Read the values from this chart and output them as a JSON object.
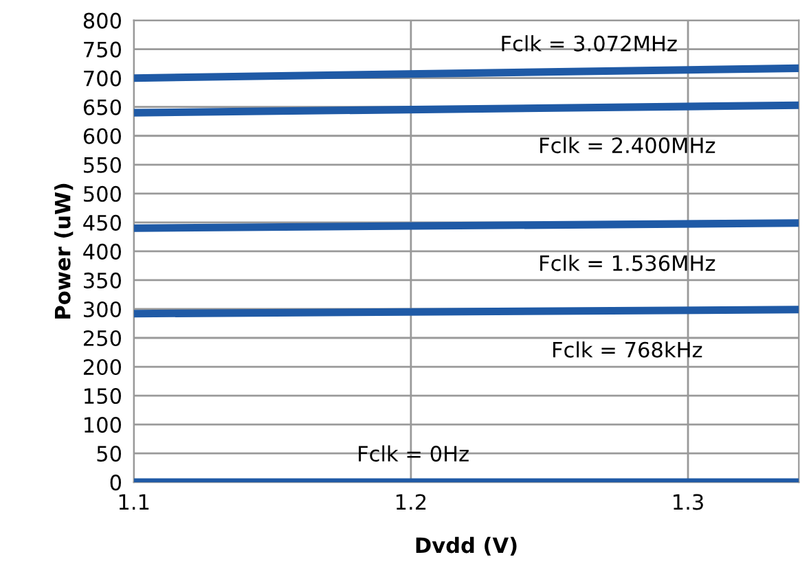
{
  "chart_data": {
    "type": "line",
    "xlabel": "Dvdd (V)",
    "ylabel": "Power (uW)",
    "x": [
      1.1,
      1.34
    ],
    "series": [
      {
        "name": "Fclk = 3.072MHz",
        "color": "#1f5aa6",
        "values": [
          700,
          717
        ]
      },
      {
        "name": "Fclk = 2.400MHz",
        "color": "#1f5aa6",
        "values": [
          640,
          653
        ]
      },
      {
        "name": "Fclk = 1.536MHz",
        "color": "#1f5aa6",
        "values": [
          440,
          449
        ]
      },
      {
        "name": "Fclk = 768kHz",
        "color": "#1f5aa6",
        "values": [
          292,
          299
        ]
      },
      {
        "name": "Fclk = 0Hz",
        "color": "#1f5aa6",
        "values": [
          0,
          0
        ]
      }
    ],
    "xlim": [
      1.1,
      1.34
    ],
    "xticks": [
      1.1,
      1.2,
      1.3
    ],
    "ylim": [
      0,
      800
    ],
    "yticks": [
      0,
      50,
      100,
      150,
      200,
      250,
      300,
      350,
      400,
      450,
      500,
      550,
      600,
      650,
      700,
      750,
      800
    ],
    "grid": true,
    "legend": false,
    "marker": "none",
    "line_style": "solid"
  }
}
